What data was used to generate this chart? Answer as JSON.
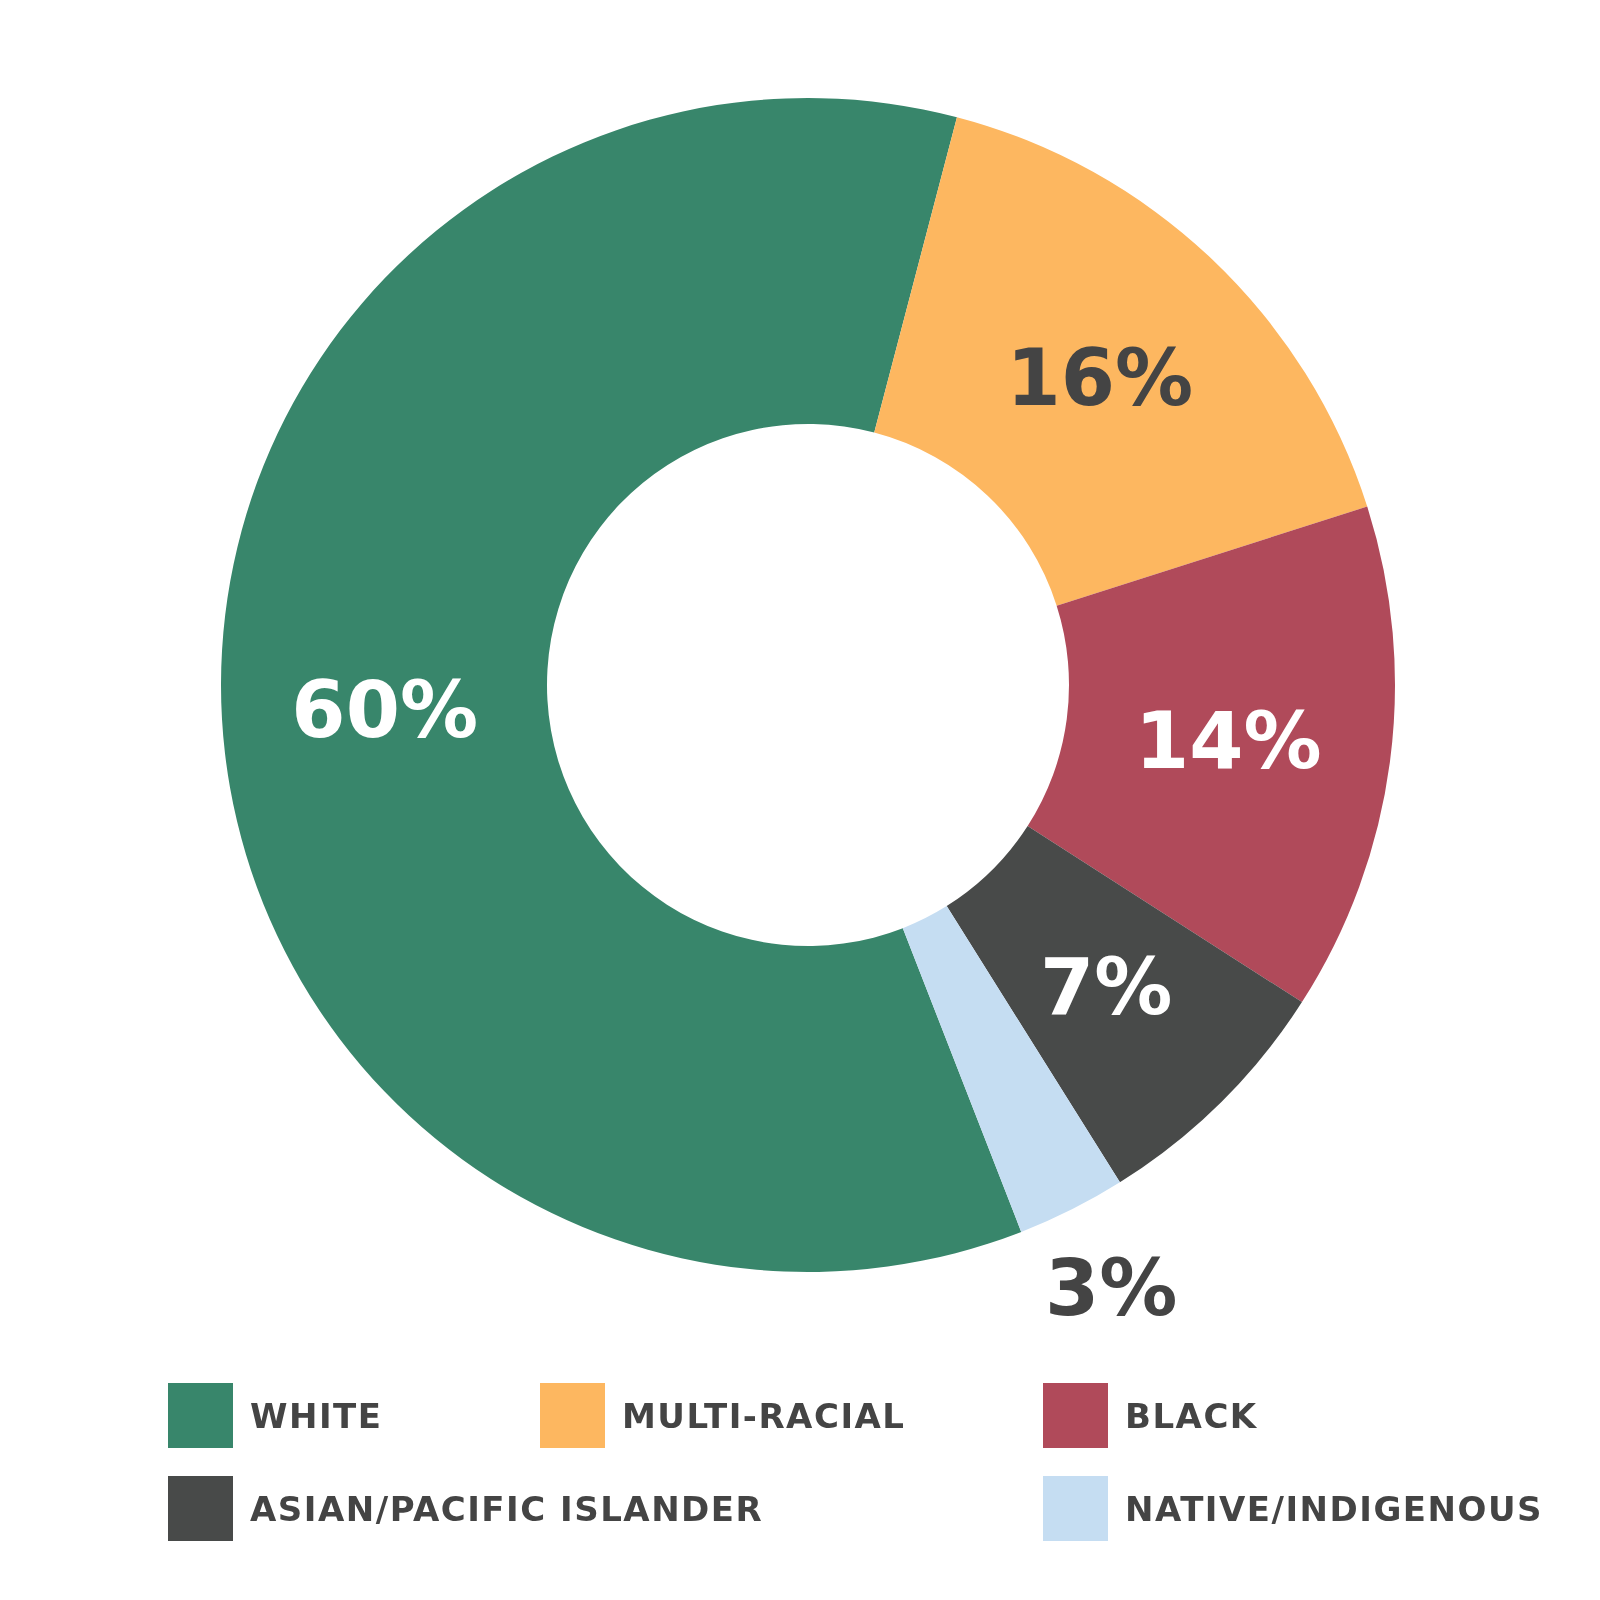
{
  "chart_data": {
    "type": "donut",
    "categories": [
      "WHITE",
      "MULTI-RACIAL",
      "BLACK",
      "ASIAN/PACIFIC ISLANDER",
      "NATIVE/INDIGENOUS"
    ],
    "values": [
      60,
      16,
      14,
      7,
      3
    ],
    "value_labels": [
      "60%",
      "16%",
      "14%",
      "7%",
      "3%"
    ],
    "colors": [
      "#38866b",
      "#fdb760",
      "#b04a5a",
      "#484a49",
      "#c5ddf2"
    ],
    "legend": "bottom"
  }
}
